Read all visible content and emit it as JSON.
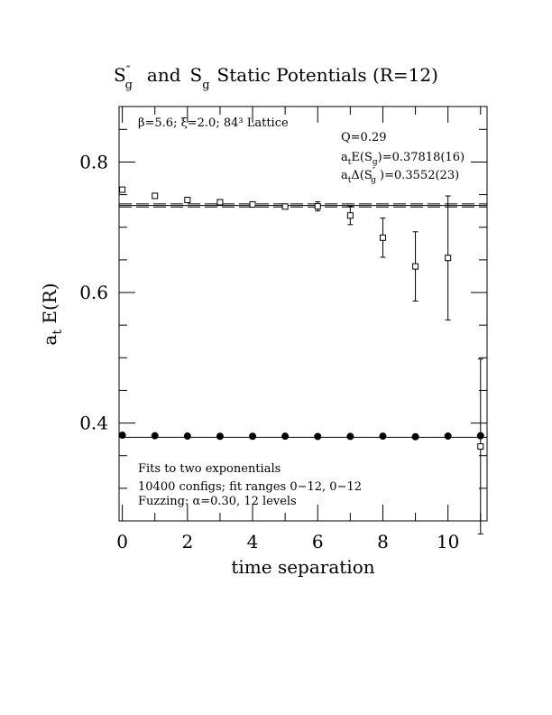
{
  "chart_data": {
    "type": "scatter",
    "title": "S″g and Sg Static Potentials (R=12)",
    "title_parts": {
      "s_dd": "S",
      "s_dd_sup": "″",
      "s_dd_sub": "g",
      "and": "and",
      "s_g": "S",
      "s_g_sub": "g",
      "rest": "Static Potentials (R=12)"
    },
    "xlabel": "time separation",
    "ylabel_main": "a",
    "ylabel_sub": "t",
    "ylabel_rest": " E(R)",
    "xlim": [
      -0.1,
      11.2
    ],
    "ylim": [
      0.25,
      0.885
    ],
    "x_ticks": [
      {
        "value": 0,
        "label": "0"
      },
      {
        "value": 2,
        "label": "2"
      },
      {
        "value": 4,
        "label": "4"
      },
      {
        "value": 6,
        "label": "6"
      },
      {
        "value": 8,
        "label": "8"
      },
      {
        "value": 10,
        "label": "10"
      }
    ],
    "y_ticks": [
      {
        "value": 0.4,
        "label": "0.4"
      },
      {
        "value": 0.6,
        "label": "0.6"
      },
      {
        "value": 0.8,
        "label": "0.8"
      }
    ],
    "annotations": {
      "lattice_params": "β=5.6; ξ=2.0; 84³ Lattice",
      "q_value": "Q=0.29",
      "energy_sg": "atE(Sg)=0.37818(16)",
      "energy_sg_parts": {
        "a": "a",
        "t": "t",
        "body": "E(S",
        "g": "g",
        "tail": ")=0.37818(16)"
      },
      "delta_parts": {
        "a": "a",
        "t": "t",
        "body": "Δ(S",
        "sup": "″",
        "g": "g",
        "tail": " )=0.3552(23)"
      },
      "fits_line": "Fits to two exponentials",
      "configs_line": "10400 configs; fit ranges 0−12, 0−12",
      "fuzzing_line": "Fuzzing: α=0.30, 12 levels"
    },
    "series": [
      {
        "name": "Sg",
        "marker": "filled-circle",
        "x": [
          0,
          1,
          2,
          3,
          4,
          5,
          6,
          7,
          8,
          9,
          10,
          11
        ],
        "y": [
          0.3814,
          0.3805,
          0.38,
          0.3797,
          0.3797,
          0.3798,
          0.3794,
          0.3795,
          0.3799,
          0.379,
          0.38,
          0.3805
        ],
        "err": [
          0,
          0,
          0,
          0,
          0,
          0,
          0,
          0,
          0,
          0,
          0,
          0
        ],
        "fit": 0.37818
      },
      {
        "name": "S″g",
        "marker": "open-square",
        "x": [
          0,
          1,
          2,
          3,
          4,
          5,
          6,
          7,
          8,
          9,
          10,
          11
        ],
        "y": [
          0.7576,
          0.7481,
          0.7418,
          0.7384,
          0.735,
          0.7317,
          0.732,
          0.718,
          0.684,
          0.64,
          0.653,
          0.364
        ],
        "err": [
          0.0008,
          0.0012,
          0.002,
          0.0022,
          0.0025,
          0.0035,
          0.007,
          0.014,
          0.03,
          0.053,
          0.095,
          0.134
        ],
        "fit": 0.7334,
        "fit_band": [
          0.7311,
          0.7357
        ]
      }
    ]
  }
}
